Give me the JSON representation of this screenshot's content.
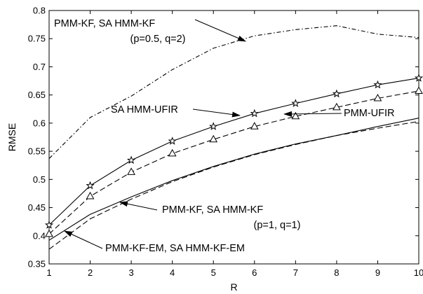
{
  "chart_data": {
    "type": "line",
    "title": "",
    "xlabel": "R",
    "ylabel": "RMSE",
    "xlim": [
      1,
      10
    ],
    "ylim": [
      0.35,
      0.8
    ],
    "x_ticks": [
      1,
      2,
      3,
      4,
      5,
      6,
      7,
      8,
      9,
      10
    ],
    "y_ticks": [
      0.35,
      0.4,
      0.45,
      0.5,
      0.55,
      0.6,
      0.65,
      0.7,
      0.75,
      0.8
    ],
    "y_tick_labels": [
      "0.35",
      "0.4",
      "0.45",
      "0.5",
      "0.55",
      "0.6",
      "0.65",
      "0.7",
      "0.75",
      "0.8"
    ],
    "grid": false,
    "x": [
      1,
      2,
      3,
      4,
      5,
      6,
      7,
      8,
      9,
      10
    ],
    "series": [
      {
        "key": "kf_sa",
        "style": "dashdot",
        "marker": "none",
        "values": [
          0.537,
          0.61,
          0.648,
          0.695,
          0.733,
          0.755,
          0.766,
          0.773,
          0.758,
          0.752
        ]
      },
      {
        "key": "sa_ufir",
        "style": "solid",
        "marker": "star",
        "values": [
          0.419,
          0.489,
          0.534,
          0.568,
          0.594,
          0.617,
          0.635,
          0.652,
          0.668,
          0.68
        ]
      },
      {
        "key": "pmm_ufir",
        "style": "dashed",
        "marker": "triangle",
        "values": [
          0.403,
          0.47,
          0.513,
          0.546,
          0.571,
          0.594,
          0.612,
          0.628,
          0.644,
          0.657
        ]
      },
      {
        "key": "kf_11",
        "style": "solid",
        "marker": "none",
        "values": [
          0.392,
          0.438,
          0.469,
          0.498,
          0.523,
          0.545,
          0.563,
          0.578,
          0.594,
          0.609
        ]
      },
      {
        "key": "kf_em",
        "style": "dashed",
        "marker": "none",
        "values": [
          0.376,
          0.43,
          0.465,
          0.496,
          0.522,
          0.544,
          0.562,
          0.578,
          0.591,
          0.603
        ]
      }
    ],
    "annotations": [
      {
        "key": "kf_sa",
        "lines": [
          "PMM-KF, SA HMM-KF",
          "(p=0.5, q=2)"
        ]
      },
      {
        "key": "sa_ufir",
        "lines": [
          "SA HMM-UFIR"
        ]
      },
      {
        "key": "pmm_ufir",
        "lines": [
          "PMM-UFIR"
        ]
      },
      {
        "key": "kf_11",
        "lines": [
          "PMM-KF, SA HMM-KF",
          "(p=1, q=1)"
        ]
      },
      {
        "key": "kf_em",
        "lines": [
          "PMM-KF-EM, SA HMM-KF-EM"
        ]
      }
    ]
  }
}
